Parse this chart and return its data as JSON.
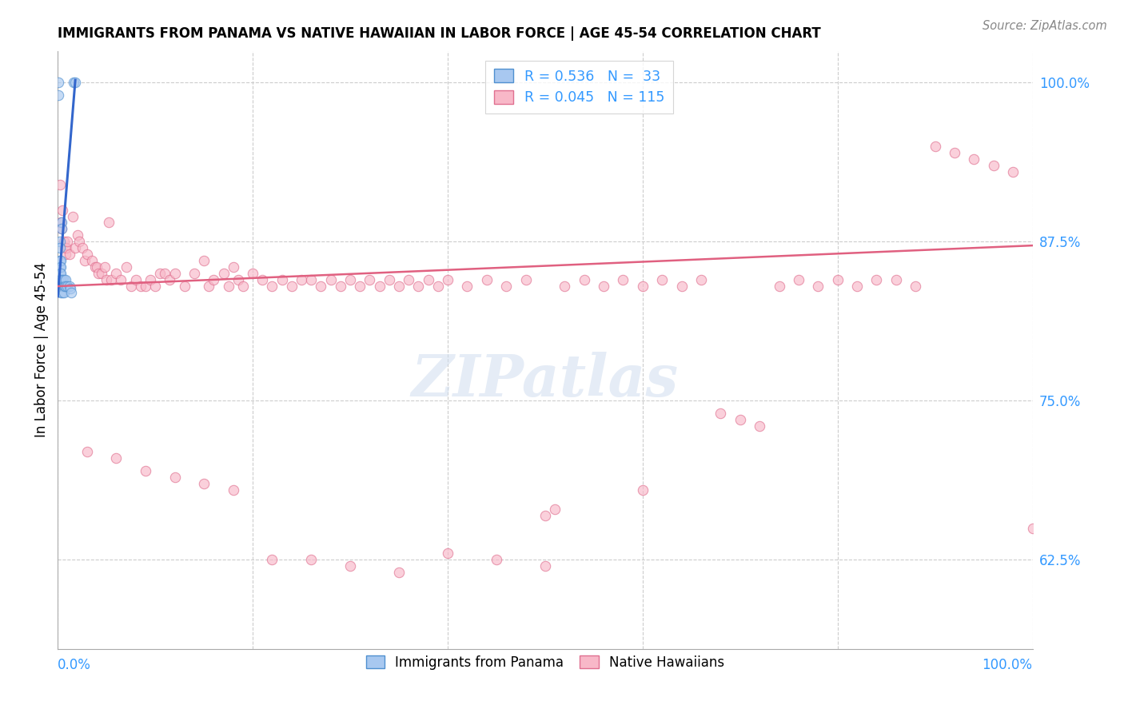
{
  "title": "IMMIGRANTS FROM PANAMA VS NATIVE HAWAIIAN IN LABOR FORCE | AGE 45-54 CORRELATION CHART",
  "source": "Source: ZipAtlas.com",
  "ylabel": "In Labor Force | Age 45-54",
  "yticks": [
    0.625,
    0.75,
    0.875,
    1.0
  ],
  "ytick_labels": [
    "62.5%",
    "75.0%",
    "87.5%",
    "100.0%"
  ],
  "xlim": [
    0.0,
    1.0
  ],
  "ylim": [
    0.555,
    1.025
  ],
  "legend_r1": "0.536",
  "legend_n1": "33",
  "legend_r2": "0.045",
  "legend_n2": "115",
  "color_blue_fill": "#A8C8F0",
  "color_blue_edge": "#5090D0",
  "color_pink_fill": "#F8B8C8",
  "color_pink_edge": "#E07090",
  "color_blue_line": "#3366CC",
  "color_pink_line": "#E06080",
  "dot_size": 80,
  "dot_alpha": 0.65,
  "panama_x": [
    0.001,
    0.001,
    0.001,
    0.002,
    0.002,
    0.002,
    0.002,
    0.002,
    0.002,
    0.003,
    0.003,
    0.003,
    0.003,
    0.003,
    0.003,
    0.004,
    0.004,
    0.004,
    0.005,
    0.005,
    0.005,
    0.006,
    0.006,
    0.006,
    0.007,
    0.008,
    0.008,
    0.01,
    0.012,
    0.013,
    0.014,
    0.016,
    0.018
  ],
  "panama_y": [
    1.0,
    0.99,
    0.84,
    0.875,
    0.87,
    0.86,
    0.855,
    0.85,
    0.845,
    0.86,
    0.855,
    0.85,
    0.845,
    0.84,
    0.835,
    0.89,
    0.885,
    0.84,
    0.845,
    0.84,
    0.835,
    0.845,
    0.84,
    0.835,
    0.84,
    0.845,
    0.84,
    0.84,
    0.84,
    0.838,
    0.835,
    1.0,
    1.0
  ],
  "blue_line_x": [
    0.0,
    0.018
  ],
  "blue_line_y": [
    0.832,
    1.002
  ],
  "pink_line_x": [
    0.0,
    1.0
  ],
  "pink_line_y": [
    0.84,
    0.872
  ],
  "native_x": [
    0.002,
    0.003,
    0.004,
    0.005,
    0.006,
    0.007,
    0.008,
    0.009,
    0.01,
    0.012,
    0.015,
    0.018,
    0.02,
    0.022,
    0.025,
    0.028,
    0.03,
    0.035,
    0.038,
    0.04,
    0.042,
    0.045,
    0.048,
    0.05,
    0.052,
    0.055,
    0.06,
    0.065,
    0.07,
    0.075,
    0.08,
    0.085,
    0.09,
    0.095,
    0.1,
    0.105,
    0.11,
    0.115,
    0.12,
    0.13,
    0.14,
    0.15,
    0.155,
    0.16,
    0.17,
    0.175,
    0.18,
    0.185,
    0.19,
    0.2,
    0.21,
    0.22,
    0.23,
    0.24,
    0.25,
    0.26,
    0.27,
    0.28,
    0.29,
    0.3,
    0.31,
    0.32,
    0.33,
    0.34,
    0.35,
    0.36,
    0.37,
    0.38,
    0.39,
    0.4,
    0.42,
    0.44,
    0.46,
    0.48,
    0.5,
    0.51,
    0.52,
    0.54,
    0.56,
    0.58,
    0.6,
    0.62,
    0.64,
    0.66,
    0.68,
    0.7,
    0.72,
    0.74,
    0.76,
    0.78,
    0.8,
    0.82,
    0.84,
    0.86,
    0.88,
    0.9,
    0.92,
    0.94,
    0.96,
    0.98,
    1.0,
    0.03,
    0.06,
    0.09,
    0.12,
    0.15,
    0.18,
    0.22,
    0.26,
    0.3,
    0.35,
    0.4,
    0.45,
    0.5,
    0.6
  ],
  "native_y": [
    0.92,
    0.89,
    0.885,
    0.9,
    0.875,
    0.87,
    0.865,
    0.87,
    0.875,
    0.865,
    0.895,
    0.87,
    0.88,
    0.875,
    0.87,
    0.86,
    0.865,
    0.86,
    0.855,
    0.855,
    0.85,
    0.85,
    0.855,
    0.845,
    0.89,
    0.845,
    0.85,
    0.845,
    0.855,
    0.84,
    0.845,
    0.84,
    0.84,
    0.845,
    0.84,
    0.85,
    0.85,
    0.845,
    0.85,
    0.84,
    0.85,
    0.86,
    0.84,
    0.845,
    0.85,
    0.84,
    0.855,
    0.845,
    0.84,
    0.85,
    0.845,
    0.84,
    0.845,
    0.84,
    0.845,
    0.845,
    0.84,
    0.845,
    0.84,
    0.845,
    0.84,
    0.845,
    0.84,
    0.845,
    0.84,
    0.845,
    0.84,
    0.845,
    0.84,
    0.845,
    0.84,
    0.845,
    0.84,
    0.845,
    0.66,
    0.665,
    0.84,
    0.845,
    0.84,
    0.845,
    0.84,
    0.845,
    0.84,
    0.845,
    0.74,
    0.735,
    0.73,
    0.84,
    0.845,
    0.84,
    0.845,
    0.84,
    0.845,
    0.845,
    0.84,
    0.95,
    0.945,
    0.94,
    0.935,
    0.93,
    0.65,
    0.71,
    0.705,
    0.695,
    0.69,
    0.685,
    0.68,
    0.625,
    0.625,
    0.62,
    0.615,
    0.63,
    0.625,
    0.62,
    0.68
  ]
}
